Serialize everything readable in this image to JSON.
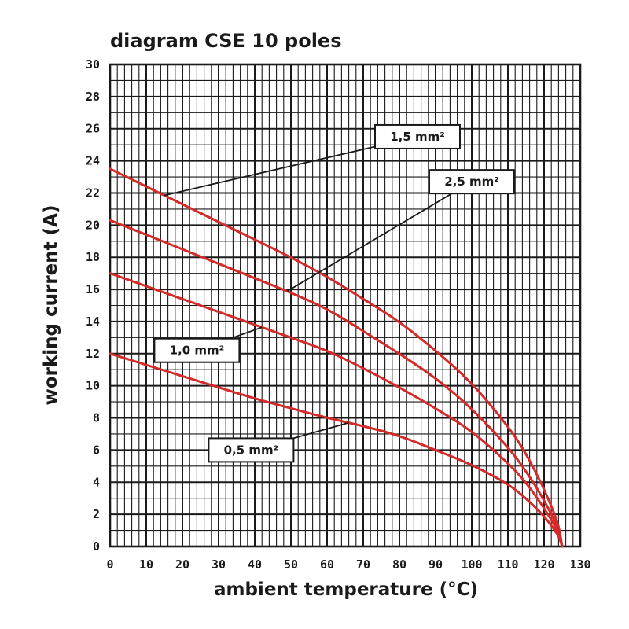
{
  "chart_data": {
    "type": "line",
    "title": "diagram CSE 10 poles",
    "xlabel": "ambient temperature (°C)",
    "ylabel": "working current (A)",
    "xlim": [
      0,
      130
    ],
    "ylim": [
      0,
      30
    ],
    "x_ticks": [
      "0",
      "10",
      "20",
      "30",
      "40",
      "50",
      "60",
      "70",
      "80",
      "90",
      "100",
      "110",
      "120",
      "130"
    ],
    "y_ticks": [
      "0",
      "2",
      "4",
      "6",
      "8",
      "10",
      "12",
      "14",
      "16",
      "18",
      "20",
      "22",
      "24",
      "26",
      "28",
      "30"
    ],
    "grid": true,
    "series_color": "#d42a2a",
    "series": [
      {
        "name": "1,5 mm²",
        "x": [
          0,
          10,
          20,
          30,
          40,
          50,
          60,
          70,
          80,
          90,
          100,
          110,
          115,
          120,
          124,
          125
        ],
        "y": [
          23.5,
          22.4,
          21.3,
          20.2,
          19.1,
          18.0,
          16.8,
          15.4,
          14.0,
          12.2,
          10.2,
          7.5,
          5.8,
          3.6,
          1.4,
          0
        ]
      },
      {
        "name": "2,5 mm²",
        "x": [
          0,
          10,
          20,
          30,
          40,
          50,
          60,
          70,
          80,
          90,
          100,
          110,
          115,
          120,
          124,
          125
        ],
        "y": [
          20.3,
          19.4,
          18.5,
          17.6,
          16.7,
          15.8,
          14.8,
          13.4,
          12.0,
          10.5,
          8.6,
          6.2,
          4.7,
          2.9,
          1.1,
          0
        ]
      },
      {
        "name": "1,0 mm²",
        "x": [
          0,
          10,
          20,
          30,
          40,
          50,
          60,
          70,
          80,
          90,
          100,
          110,
          115,
          120,
          124,
          125
        ],
        "y": [
          17.0,
          16.2,
          15.4,
          14.6,
          13.8,
          13.0,
          12.2,
          11.1,
          9.9,
          8.6,
          7.2,
          5.2,
          4.0,
          2.4,
          0.9,
          0
        ]
      },
      {
        "name": "0,5 mm²",
        "x": [
          0,
          10,
          20,
          30,
          40,
          50,
          60,
          70,
          80,
          90,
          100,
          110,
          115,
          120,
          124,
          125
        ],
        "y": [
          12.0,
          11.3,
          10.6,
          9.9,
          9.2,
          8.6,
          8.0,
          7.5,
          6.9,
          6.0,
          5.1,
          3.9,
          3.0,
          1.9,
          0.7,
          0
        ]
      }
    ],
    "callouts": [
      {
        "label": "1,5 mm²",
        "series": 0,
        "at_x": 15,
        "box_x": 85,
        "box_y": 25.5
      },
      {
        "label": "2,5 mm²",
        "series": 1,
        "at_x": 49,
        "box_x": 100,
        "box_y": 22.7
      },
      {
        "label": "1,0 mm²",
        "series": 2,
        "at_x": 42,
        "box_x": 24,
        "box_y": 12.2
      },
      {
        "label": "0,5 mm²",
        "series": 3,
        "at_x": 66,
        "box_x": 39,
        "box_y": 6.0
      }
    ]
  }
}
